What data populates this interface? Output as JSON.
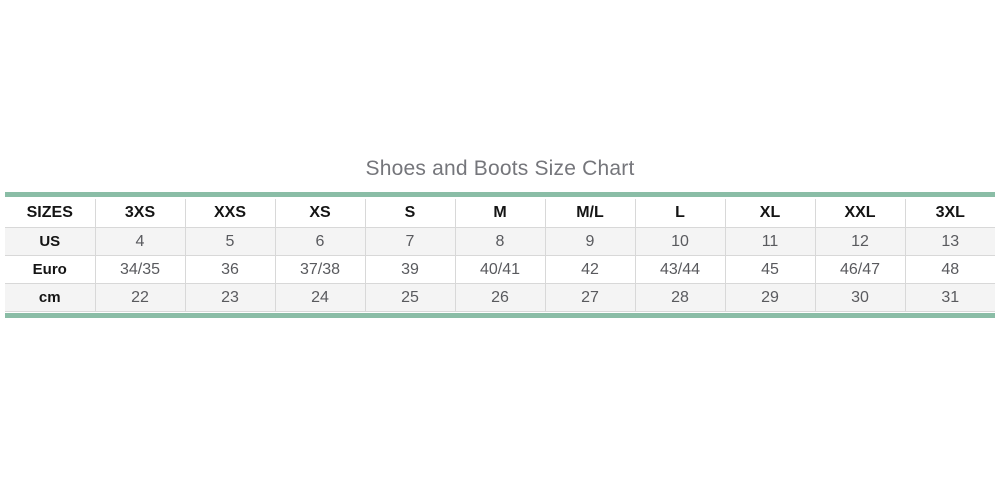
{
  "title": "Shoes and Boots Size Chart",
  "chart_data": {
    "type": "table",
    "title": "Shoes and Boots Size Chart",
    "columns": [
      "SIZES",
      "3XS",
      "XXS",
      "XS",
      "S",
      "M",
      "M/L",
      "L",
      "XL",
      "XXL",
      "3XL"
    ],
    "rows": [
      {
        "label": "US",
        "values": [
          "4",
          "5",
          "6",
          "7",
          "8",
          "9",
          "10",
          "11",
          "12",
          "13"
        ]
      },
      {
        "label": "Euro",
        "values": [
          "34/35",
          "36",
          "37/38",
          "39",
          "40/41",
          "42",
          "43/44",
          "45",
          "46/47",
          "48"
        ]
      },
      {
        "label": "cm",
        "values": [
          "22",
          "23",
          "24",
          "25",
          "26",
          "27",
          "28",
          "29",
          "30",
          "31"
        ]
      }
    ]
  },
  "colors": {
    "accent_teal": "#8abda6",
    "row_stripe": "#f4f4f4",
    "cell_border": "#d8d8d8",
    "header_text": "#141414",
    "data_text": "#595a5e",
    "title_text": "#75767b",
    "background": "#ffffff"
  }
}
